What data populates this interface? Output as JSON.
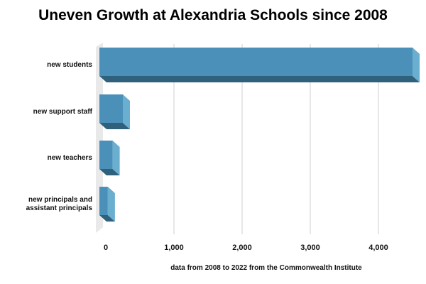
{
  "chart_data": {
    "type": "bar",
    "orientation": "horizontal",
    "title": "Uneven Growth at Alexandria Schools since 2008",
    "xlabel": "data from 2008 to 2022 from the Commonwealth Institute",
    "ylabel": "",
    "categories": [
      "new students",
      "new support staff",
      "new teachers",
      "new principals and assistant principals"
    ],
    "values": [
      4500,
      250,
      100,
      30
    ],
    "xlim": [
      0,
      4500
    ],
    "xticks": [
      0,
      1000,
      2000,
      3000,
      4000
    ],
    "xtick_labels": [
      "0",
      "1,000",
      "2,000",
      "3,000",
      "4,000"
    ],
    "grid": "vertical",
    "legend": "none",
    "style": "3d",
    "colors": {
      "bar_front": "#4a90b8",
      "bar_side": "#6aaed0",
      "bar_bottom": "#2f617c",
      "grid": "#cfcfcf",
      "wall": "#e9e9e9"
    }
  }
}
